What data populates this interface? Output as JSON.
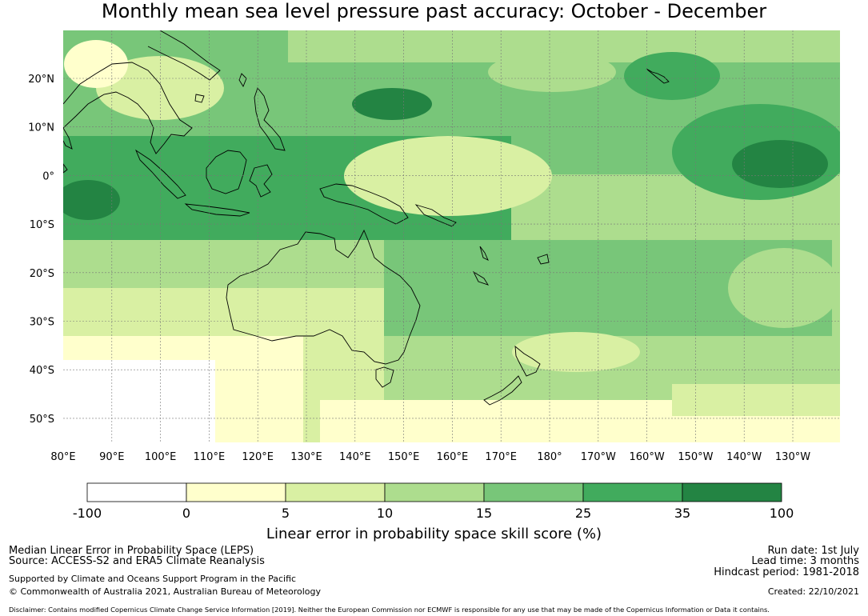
{
  "title": "Monthly mean sea level pressure past accuracy: October - December",
  "map": {
    "lon_labels": [
      "80°E",
      "90°E",
      "100°E",
      "110°E",
      "120°E",
      "130°E",
      "140°E",
      "150°E",
      "160°E",
      "170°E",
      "180°",
      "170°W",
      "160°W",
      "150°W",
      "140°W",
      "130°W"
    ],
    "lat_labels": [
      "20°N",
      "10°N",
      "0°",
      "10°S",
      "20°S",
      "30°S",
      "40°S",
      "50°S"
    ],
    "gridlines": true,
    "region": "Australia, Maritime Continent and western/central Pacific"
  },
  "colorbar": {
    "ticks": [
      "-100",
      "0",
      "5",
      "10",
      "15",
      "25",
      "35",
      "100"
    ],
    "bins": [
      {
        "from": -100,
        "to": 0,
        "color": "#ffffff"
      },
      {
        "from": 0,
        "to": 5,
        "color": "#ffffcc"
      },
      {
        "from": 5,
        "to": 10,
        "color": "#d9f0a3"
      },
      {
        "from": 10,
        "to": 15,
        "color": "#addd8e"
      },
      {
        "from": 15,
        "to": 25,
        "color": "#78c679"
      },
      {
        "from": 25,
        "to": 35,
        "color": "#41ab5d"
      },
      {
        "from": 35,
        "to": 100,
        "color": "#238443"
      }
    ],
    "label": "Linear error in probability space skill score (%)"
  },
  "footer": {
    "left_line1": "Median Linear Error in Probability Space (LEPS)",
    "left_line2": "Source: ACCESS-S2 and ERA5 Climate Reanalysis",
    "left_line3": "Supported by Climate and Oceans Support Program in the Pacific",
    "left_line4": "© Commonwealth of Australia 2021, Australian Bureau of Meteorology",
    "right_line1": "Run date: 1st July",
    "right_line2": "Lead time: 3 months",
    "right_line3": "Hindcast period: 1981-2018",
    "right_line4": "Created: 22/10/2021",
    "disclaimer": "Disclaimer: Contains modified Copernicus Climate Change Service Information [2019]. Neither the European Commission nor ECMWF is responsible for any use that may be made of the Copernicus Information or Data it contains."
  }
}
